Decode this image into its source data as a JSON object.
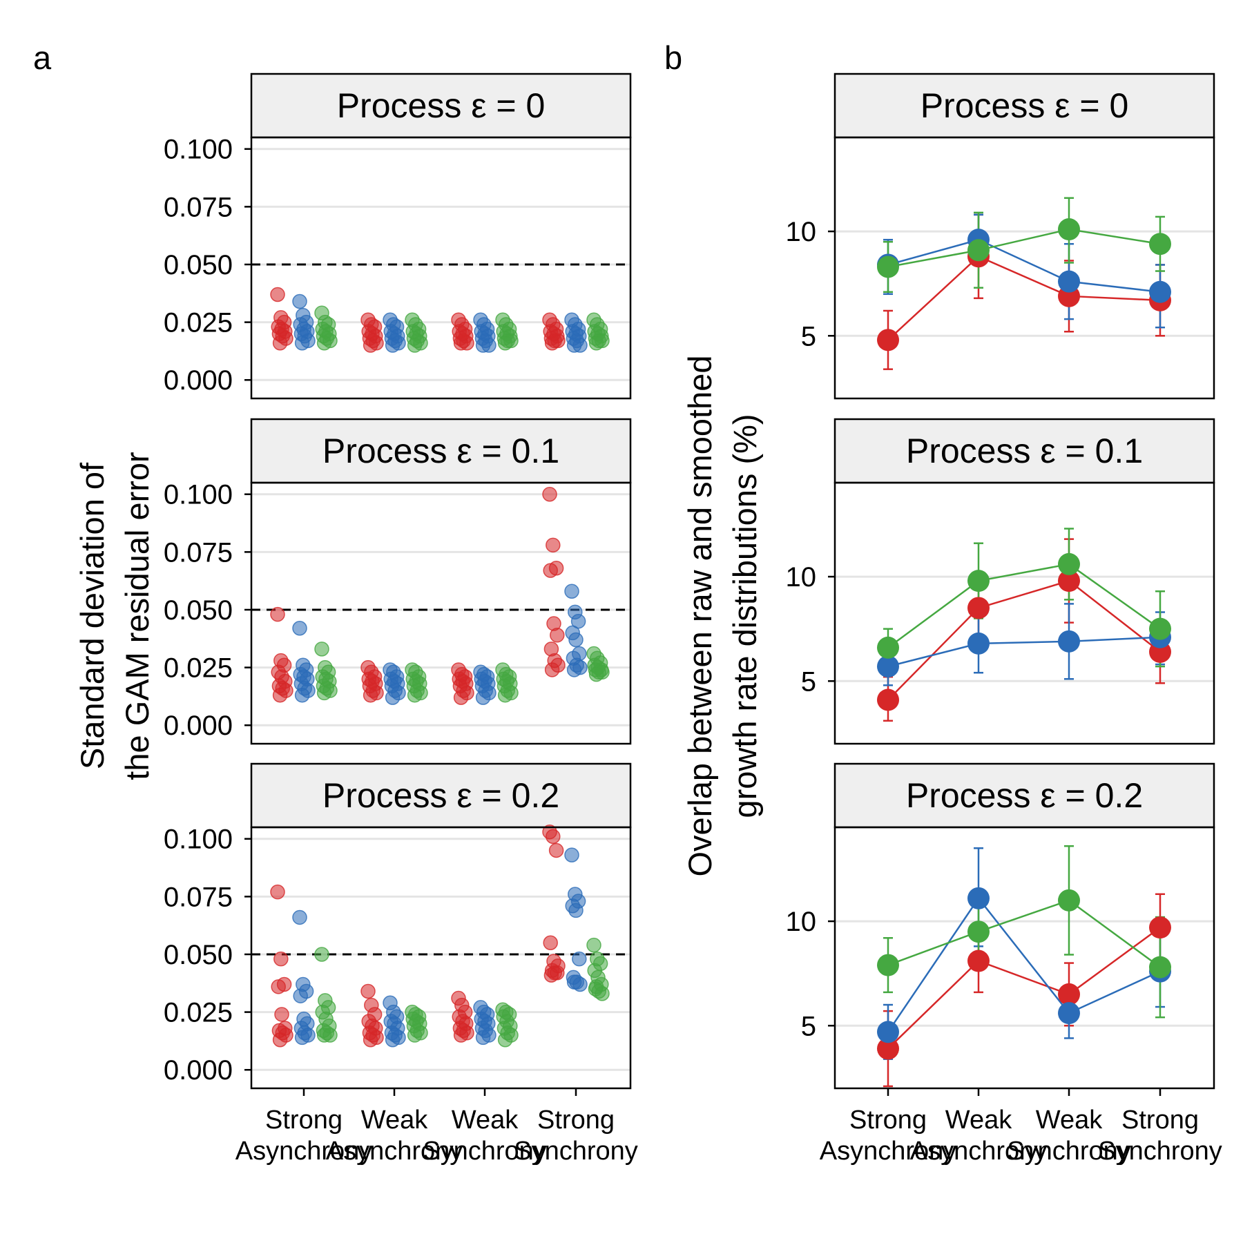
{
  "figure": {
    "panel_a": {
      "letter": "a"
    },
    "panel_b": {
      "letter": "b"
    }
  },
  "colors": {
    "red": "#d62728",
    "blue": "#2b6cb8",
    "green": "#45a841",
    "strip_bg": "#efefef",
    "grid": "#e4e4e4"
  },
  "chart_data": [
    {
      "type": "scatter",
      "panel": "a",
      "ylabel": [
        "Standard deviation of",
        "the GAM residual error"
      ],
      "xlabel": "",
      "categories": [
        "Strong\nAsynchrony",
        "Weak\nAsynchrony",
        "Weak\nSynchrony",
        "Strong\nSynchrony"
      ],
      "ylim": [
        -0.008,
        0.105
      ],
      "yticks": [
        "0.000",
        "0.025",
        "0.050",
        "0.075",
        "0.100"
      ],
      "reference_line": 0.05,
      "grid": true,
      "facets": [
        {
          "label": "Process ε = 0",
          "groups": [
            {
              "red": [
                0.037,
                0.027,
                0.025,
                0.023,
                0.022,
                0.021,
                0.02,
                0.019,
                0.018,
                0.016
              ],
              "blue": [
                0.034,
                0.028,
                0.025,
                0.024,
                0.022,
                0.021,
                0.02,
                0.019,
                0.017,
                0.016
              ],
              "green": [
                0.029,
                0.025,
                0.024,
                0.022,
                0.021,
                0.02,
                0.019,
                0.018,
                0.017,
                0.016
              ]
            },
            {
              "red": [
                0.026,
                0.024,
                0.023,
                0.021,
                0.02,
                0.019,
                0.018,
                0.017,
                0.016,
                0.015
              ],
              "blue": [
                0.026,
                0.024,
                0.023,
                0.021,
                0.02,
                0.019,
                0.018,
                0.017,
                0.016,
                0.015
              ],
              "green": [
                0.026,
                0.024,
                0.022,
                0.021,
                0.02,
                0.019,
                0.018,
                0.017,
                0.016,
                0.015
              ]
            },
            {
              "red": [
                0.026,
                0.024,
                0.022,
                0.021,
                0.02,
                0.019,
                0.018,
                0.017,
                0.016,
                0.016
              ],
              "blue": [
                0.026,
                0.024,
                0.022,
                0.021,
                0.02,
                0.019,
                0.018,
                0.017,
                0.015,
                0.015
              ],
              "green": [
                0.026,
                0.024,
                0.022,
                0.021,
                0.02,
                0.019,
                0.018,
                0.017,
                0.017,
                0.016
              ]
            },
            {
              "red": [
                0.026,
                0.024,
                0.022,
                0.021,
                0.02,
                0.019,
                0.018,
                0.017,
                0.017,
                0.016
              ],
              "blue": [
                0.026,
                0.024,
                0.022,
                0.021,
                0.02,
                0.019,
                0.018,
                0.017,
                0.015,
                0.015
              ],
              "green": [
                0.026,
                0.024,
                0.022,
                0.021,
                0.02,
                0.019,
                0.018,
                0.017,
                0.017,
                0.016
              ]
            }
          ]
        },
        {
          "label": "Process ε = 0.1",
          "groups": [
            {
              "red": [
                0.048,
                0.028,
                0.026,
                0.023,
                0.021,
                0.019,
                0.017,
                0.016,
                0.015,
                0.013
              ],
              "blue": [
                0.042,
                0.026,
                0.024,
                0.022,
                0.021,
                0.02,
                0.018,
                0.016,
                0.015,
                0.013
              ],
              "green": [
                0.033,
                0.025,
                0.023,
                0.021,
                0.02,
                0.019,
                0.017,
                0.016,
                0.015,
                0.014
              ]
            },
            {
              "red": [
                0.025,
                0.023,
                0.021,
                0.02,
                0.019,
                0.018,
                0.017,
                0.015,
                0.014,
                0.013
              ],
              "blue": [
                0.024,
                0.023,
                0.021,
                0.02,
                0.019,
                0.018,
                0.017,
                0.015,
                0.014,
                0.012
              ],
              "green": [
                0.024,
                0.023,
                0.021,
                0.02,
                0.019,
                0.018,
                0.017,
                0.015,
                0.014,
                0.013
              ]
            },
            {
              "red": [
                0.024,
                0.022,
                0.021,
                0.02,
                0.019,
                0.018,
                0.017,
                0.015,
                0.014,
                0.012
              ],
              "blue": [
                0.023,
                0.022,
                0.021,
                0.02,
                0.019,
                0.018,
                0.017,
                0.015,
                0.014,
                0.012
              ],
              "green": [
                0.024,
                0.022,
                0.021,
                0.02,
                0.019,
                0.018,
                0.017,
                0.015,
                0.014,
                0.013
              ]
            },
            {
              "red": [
                0.1,
                0.078,
                0.068,
                0.067,
                0.044,
                0.039,
                0.033,
                0.028,
                0.026,
                0.024
              ],
              "blue": [
                0.058,
                0.049,
                0.045,
                0.04,
                0.037,
                0.031,
                0.029,
                0.026,
                0.025,
                0.024
              ],
              "green": [
                0.031,
                0.029,
                0.027,
                0.026,
                0.025,
                0.024,
                0.024,
                0.023,
                0.023,
                0.022
              ]
            }
          ]
        },
        {
          "label": "Process ε = 0.2",
          "groups": [
            {
              "red": [
                0.077,
                0.048,
                0.037,
                0.036,
                0.024,
                0.018,
                0.017,
                0.016,
                0.015,
                0.013
              ],
              "blue": [
                0.066,
                0.037,
                0.034,
                0.032,
                0.022,
                0.02,
                0.018,
                0.016,
                0.015,
                0.014
              ],
              "green": [
                0.05,
                0.03,
                0.027,
                0.025,
                0.022,
                0.019,
                0.017,
                0.016,
                0.015,
                0.015
              ]
            },
            {
              "red": [
                0.034,
                0.028,
                0.024,
                0.021,
                0.019,
                0.018,
                0.016,
                0.015,
                0.014,
                0.013
              ],
              "blue": [
                0.029,
                0.025,
                0.023,
                0.021,
                0.02,
                0.018,
                0.016,
                0.015,
                0.014,
                0.013
              ],
              "green": [
                0.025,
                0.024,
                0.023,
                0.022,
                0.021,
                0.02,
                0.019,
                0.017,
                0.016,
                0.015
              ]
            },
            {
              "red": [
                0.031,
                0.028,
                0.025,
                0.023,
                0.021,
                0.02,
                0.018,
                0.017,
                0.016,
                0.015
              ],
              "blue": [
                0.027,
                0.025,
                0.024,
                0.022,
                0.021,
                0.02,
                0.018,
                0.017,
                0.015,
                0.014
              ],
              "green": [
                0.026,
                0.025,
                0.024,
                0.023,
                0.021,
                0.019,
                0.018,
                0.016,
                0.015,
                0.013
              ]
            },
            {
              "red": [
                0.103,
                0.101,
                0.095,
                0.055,
                0.047,
                0.042,
                0.041,
                0.042,
                0.045,
                0.043
              ],
              "blue": [
                0.093,
                0.076,
                0.073,
                0.071,
                0.069,
                0.048,
                0.04,
                0.038,
                0.037,
                0.038
              ],
              "green": [
                0.054,
                0.048,
                0.046,
                0.043,
                0.04,
                0.037,
                0.035,
                0.034,
                0.033,
                0.036
              ]
            }
          ]
        }
      ]
    },
    {
      "type": "line",
      "panel": "b",
      "ylabel": [
        "Overlap between raw and smoothed",
        "growth rate distributions (%)"
      ],
      "xlabel": "",
      "categories": [
        "Strong\nAsynchrony",
        "Weak\nAsynchrony",
        "Weak\nSynchrony",
        "Strong\nSynchrony"
      ],
      "ylim": [
        2.0,
        14.5
      ],
      "yticks": [
        5,
        10
      ],
      "grid": true,
      "facets": [
        {
          "label": "Process ε = 0",
          "series": [
            {
              "color": "red",
              "mean": [
                4.8,
                8.8,
                6.9,
                6.7
              ],
              "lower": [
                3.4,
                6.8,
                5.2,
                5.0
              ],
              "upper": [
                6.2,
                10.8,
                8.6,
                8.4
              ]
            },
            {
              "color": "blue",
              "mean": [
                8.4,
                9.6,
                7.6,
                7.1
              ],
              "lower": [
                7.0,
                8.4,
                5.8,
                5.4
              ],
              "upper": [
                9.6,
                10.8,
                9.4,
                8.4
              ]
            },
            {
              "color": "green",
              "mean": [
                8.3,
                9.1,
                10.1,
                9.4
              ],
              "lower": [
                7.1,
                7.3,
                8.5,
                8.1
              ],
              "upper": [
                9.5,
                10.9,
                11.6,
                10.7
              ]
            }
          ]
        },
        {
          "label": "Process ε = 0.1",
          "series": [
            {
              "color": "red",
              "mean": [
                4.1,
                8.5,
                9.8,
                6.4
              ],
              "lower": [
                3.1,
                6.8,
                7.8,
                4.9
              ],
              "upper": [
                5.2,
                10.0,
                11.8,
                7.9
              ]
            },
            {
              "color": "blue",
              "mean": [
                5.7,
                6.8,
                6.9,
                7.1
              ],
              "lower": [
                4.8,
                5.4,
                5.1,
                5.8
              ],
              "upper": [
                6.6,
                8.2,
                8.7,
                8.3
              ]
            },
            {
              "color": "green",
              "mean": [
                6.6,
                9.8,
                10.6,
                7.5
              ],
              "lower": [
                5.7,
                8.0,
                8.9,
                5.7
              ],
              "upper": [
                7.5,
                11.6,
                12.3,
                9.3
              ]
            }
          ]
        },
        {
          "label": "Process ε = 0.2",
          "series": [
            {
              "color": "red",
              "mean": [
                3.9,
                8.1,
                6.5,
                9.7
              ],
              "lower": [
                2.1,
                6.6,
                5.0,
                8.1
              ],
              "upper": [
                5.7,
                9.6,
                8.0,
                11.3
              ]
            },
            {
              "color": "blue",
              "mean": [
                4.7,
                11.1,
                5.6,
                7.6
              ],
              "lower": [
                3.4,
                8.8,
                4.4,
                5.9
              ],
              "upper": [
                6.0,
                13.5,
                6.8,
                9.3
              ]
            },
            {
              "color": "green",
              "mean": [
                7.9,
                9.5,
                11.0,
                7.8
              ],
              "lower": [
                6.6,
                7.9,
                8.4,
                5.4
              ],
              "upper": [
                9.2,
                11.1,
                13.6,
                10.2
              ]
            }
          ]
        }
      ]
    }
  ]
}
